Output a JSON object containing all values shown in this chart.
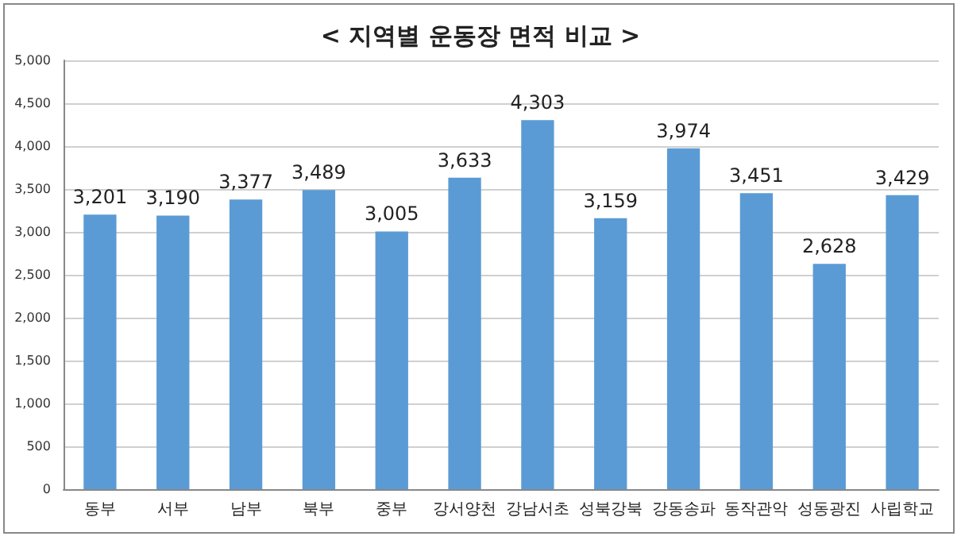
{
  "chart_data": {
    "type": "bar",
    "title": "< 지역별 운동장 면적 비교 >",
    "categories": [
      "동부",
      "서부",
      "남부",
      "북부",
      "중부",
      "강서양천",
      "강남서초",
      "성북강북",
      "강동송파",
      "동작관악",
      "성동광진",
      "사립학교"
    ],
    "values": [
      3201,
      3190,
      3377,
      3489,
      3005,
      3633,
      4303,
      3159,
      3974,
      3451,
      2628,
      3429
    ],
    "value_labels": [
      "3,201",
      "3,190",
      "3,377",
      "3,489",
      "3,005",
      "3,633",
      "4,303",
      "3,159",
      "3,974",
      "3,451",
      "2,628",
      "3,429"
    ],
    "color": "#5b9bd5",
    "ylim": [
      0,
      5000
    ],
    "yticks": [
      0,
      {
        "value": 500,
        "label": "500"
      },
      {
        "value": 1000,
        "label": "1,000"
      },
      {
        "value": 1500,
        "label": "1,500"
      },
      {
        "value": 2000,
        "label": "2,000"
      },
      {
        "value": 2500,
        "label": "2,500"
      },
      {
        "value": 3000,
        "label": "3,000"
      },
      {
        "value": 3500,
        "label": "3,500"
      },
      {
        "value": 4000,
        "label": "4,000"
      },
      {
        "value": 4500,
        "label": "4,500"
      },
      {
        "value": 5000,
        "label": "5,000"
      }
    ],
    "grid": "y"
  }
}
